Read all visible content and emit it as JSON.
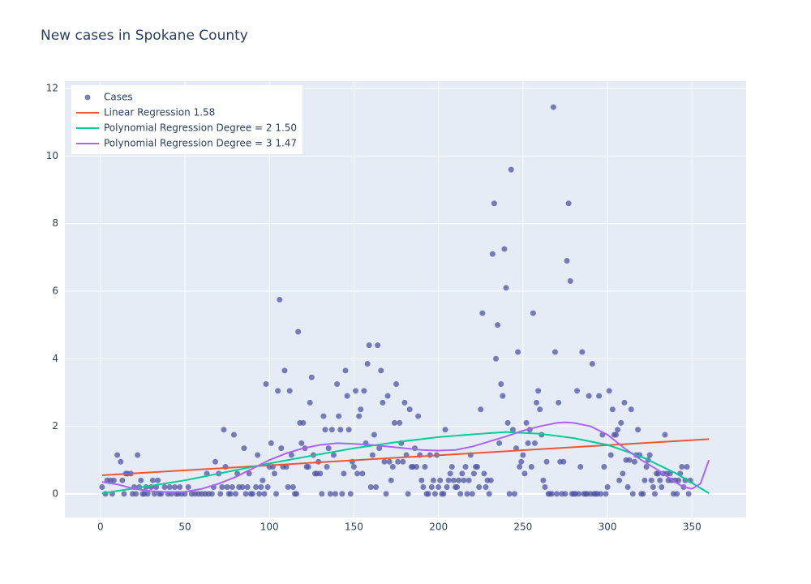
{
  "chart_data": {
    "type": "scatter",
    "title": "New cases in Spokane County",
    "xlim": [
      -21,
      382
    ],
    "ylim": [
      -0.7,
      12.22
    ],
    "xticks": [
      0,
      50,
      100,
      150,
      200,
      250,
      300,
      350
    ],
    "yticks": [
      0,
      2,
      4,
      6,
      8,
      10,
      12
    ],
    "grid": true,
    "legend": "top-left",
    "series": [
      {
        "name": "Cases",
        "color": "#5254a3",
        "mode": "markers",
        "opacity": 0.75,
        "x": [
          1,
          3,
          4,
          6,
          7,
          8,
          10,
          12,
          13,
          14,
          15,
          16,
          18,
          19,
          20,
          21,
          22,
          23,
          24,
          25,
          26,
          27,
          28,
          30,
          31,
          32,
          33,
          34,
          35,
          36,
          38,
          40,
          41,
          42,
          44,
          45,
          46,
          47,
          48,
          50,
          52,
          54,
          56,
          58,
          60,
          62,
          63,
          64,
          66,
          67,
          68,
          70,
          71,
          72,
          73,
          74,
          75,
          76,
          77,
          78,
          79,
          80,
          81,
          82,
          84,
          85,
          86,
          87,
          88,
          89,
          90,
          92,
          93,
          94,
          95,
          96,
          97,
          98,
          99,
          100,
          101,
          102,
          103,
          104,
          105,
          106,
          107,
          108,
          109,
          110,
          111,
          112,
          113,
          114,
          115,
          116,
          117,
          118,
          119,
          120,
          121,
          122,
          123,
          124,
          125,
          126,
          127,
          128,
          129,
          130,
          131,
          132,
          133,
          134,
          135,
          136,
          137,
          138,
          139,
          140,
          141,
          142,
          143,
          144,
          145,
          146,
          147,
          148,
          149,
          150,
          151,
          152,
          153,
          154,
          155,
          156,
          157,
          158,
          159,
          160,
          161,
          162,
          163,
          164,
          165,
          166,
          167,
          168,
          169,
          170,
          171,
          172,
          173,
          174,
          175,
          176,
          177,
          178,
          179,
          180,
          181,
          182,
          183,
          184,
          185,
          186,
          187,
          188,
          189,
          190,
          191,
          192,
          193,
          194,
          195,
          196,
          197,
          198,
          199,
          200,
          201,
          202,
          203,
          204,
          205,
          206,
          207,
          208,
          209,
          210,
          211,
          212,
          213,
          214,
          215,
          216,
          217,
          218,
          219,
          220,
          221,
          222,
          223,
          224,
          225,
          226,
          227,
          228,
          229,
          230,
          231,
          232,
          233,
          234,
          235,
          236,
          237,
          238,
          239,
          240,
          241,
          242,
          243,
          244,
          245,
          246,
          247,
          248,
          249,
          250,
          251,
          252,
          253,
          254,
          255,
          256,
          257,
          258,
          259,
          260,
          261,
          262,
          263,
          264,
          265,
          266,
          267,
          268,
          269,
          270,
          271,
          272,
          273,
          274,
          275,
          276,
          277,
          278,
          279,
          280,
          281,
          282,
          283,
          284,
          285,
          286,
          287,
          288,
          289,
          290,
          291,
          292,
          293,
          294,
          295,
          296,
          297,
          298,
          299,
          300,
          301,
          302,
          303,
          304,
          305,
          306,
          307,
          308,
          309,
          310,
          311,
          312,
          313,
          314,
          315,
          316,
          317,
          318,
          319,
          320,
          321,
          322,
          323,
          324,
          325,
          326,
          327,
          328,
          329,
          330,
          331,
          332,
          333,
          334,
          335,
          336,
          337,
          338,
          339,
          340,
          341,
          342,
          343,
          344,
          345,
          346,
          347,
          348,
          349
        ],
        "values": [
          0.2,
          0,
          0.4,
          0.4,
          0,
          0.4,
          1.15,
          0.95,
          0.4,
          0,
          0.6,
          0.6,
          0.6,
          0,
          0.2,
          0,
          1.15,
          0.2,
          0.4,
          0,
          0,
          0.2,
          0,
          0.2,
          0.4,
          0,
          0.2,
          0.4,
          0,
          0,
          0.2,
          0,
          0.2,
          0,
          0.2,
          0,
          0,
          0.2,
          0,
          0,
          0.2,
          0,
          0,
          0,
          0,
          0,
          0.6,
          0,
          0,
          0.2,
          0.95,
          0.6,
          0,
          0.2,
          1.9,
          0.8,
          0.2,
          0,
          0,
          0.2,
          1.75,
          0,
          0.6,
          0.2,
          0.2,
          1.35,
          0,
          0.2,
          0.6,
          0,
          0,
          0.2,
          1.15,
          0,
          0.2,
          0.4,
          0,
          3.25,
          0.2,
          0.8,
          1.5,
          0.8,
          0.6,
          0,
          3.05,
          5.75,
          1.35,
          0.8,
          3.65,
          0.8,
          0.2,
          3.05,
          1.15,
          0.2,
          0,
          0,
          4.8,
          2.1,
          1.5,
          2.1,
          1.35,
          0.8,
          0.8,
          2.7,
          3.45,
          1.15,
          0.6,
          0.6,
          0.95,
          0.6,
          0,
          2.3,
          1.9,
          0.8,
          1.35,
          0,
          1.9,
          1.15,
          0,
          3.25,
          2.3,
          1.9,
          0,
          0.6,
          3.65,
          2.9,
          1.9,
          0,
          0.95,
          0.8,
          3.05,
          0.6,
          2.3,
          2.5,
          0.6,
          3.05,
          1.5,
          3.85,
          4.4,
          0.2,
          1.15,
          1.75,
          0.2,
          4.4,
          1.35,
          3.65,
          2.7,
          0.95,
          0,
          2.9,
          0.95,
          0.4,
          0.8,
          2.1,
          3.25,
          0.95,
          2.1,
          1.5,
          0.95,
          2.7,
          1.15,
          0,
          2.5,
          0.8,
          0.8,
          1.35,
          0.8,
          2.3,
          1.15,
          0.4,
          0.2,
          0.8,
          0,
          0,
          1.15,
          0.2,
          0.4,
          0,
          1.15,
          0.2,
          0.4,
          0,
          0,
          1.9,
          0.2,
          0.4,
          0.6,
          0.8,
          0.4,
          0.2,
          0.2,
          0.4,
          0,
          0.6,
          0.4,
          0.8,
          0,
          0.4,
          1.15,
          0,
          0.6,
          0.8,
          0.8,
          0.2,
          2.5,
          5.35,
          0.6,
          0.2,
          0.4,
          0,
          0.4,
          7.1,
          8.6,
          4.0,
          5.0,
          1.5,
          3.25,
          2.9,
          7.25,
          6.1,
          2.1,
          0,
          9.6,
          1.9,
          0,
          1.35,
          4.2,
          0.8,
          0.95,
          1.15,
          0.6,
          2.1,
          1.5,
          1.9,
          0.8,
          5.35,
          1.5,
          2.7,
          3.05,
          2.5,
          1.75,
          0.4,
          0.2,
          0.95,
          0,
          0,
          0,
          11.45,
          4.2,
          0,
          2.7,
          0.95,
          0,
          0.95,
          0,
          6.9,
          8.6,
          6.3,
          0,
          0,
          0,
          3.05,
          0,
          0.8,
          4.2,
          0,
          0,
          0,
          2.9,
          0,
          3.85,
          0,
          0,
          0,
          2.9,
          0,
          1.75,
          0.8,
          0,
          0.2,
          3.05,
          1.15,
          2.5,
          1.75,
          1.75,
          1.9,
          0.4,
          2.1,
          0.6,
          2.7,
          1.0,
          0.2,
          1.0,
          2.5,
          0,
          0.95,
          1.15,
          1.9,
          1.15,
          0,
          0,
          0.4,
          0.8,
          1.0,
          1.15,
          0.4,
          0.2,
          0,
          0.6,
          0.6,
          0.4,
          0.2,
          0.6,
          1.75,
          0.6,
          0.4,
          0.6,
          0.4,
          0,
          0.4,
          0,
          0.4,
          0.6,
          0.8,
          0.2,
          0.4,
          0.8,
          0,
          0.4
        ]
      },
      {
        "name": "Linear Regression 1.58",
        "color": "#ef553b",
        "mode": "lines",
        "x": [
          1,
          360
        ],
        "values": [
          0.55,
          1.62
        ]
      },
      {
        "name": "Polynomial Regression Degree = 2 1.50",
        "color": "#00cc96",
        "mode": "lines",
        "x": [
          1,
          25,
          50,
          75,
          100,
          125,
          150,
          175,
          200,
          225,
          240,
          260,
          280,
          300,
          320,
          340,
          360
        ],
        "values": [
          0.02,
          0.2,
          0.4,
          0.65,
          0.9,
          1.13,
          1.35,
          1.53,
          1.68,
          1.78,
          1.83,
          1.78,
          1.65,
          1.45,
          1.1,
          0.62,
          0.02
        ]
      },
      {
        "name": "Polynomial Regression Degree = 3 1.47",
        "color": "#ab63fa",
        "mode": "lines",
        "x": [
          1,
          10,
          20,
          30,
          40,
          50,
          60,
          70,
          80,
          90,
          100,
          110,
          120,
          130,
          140,
          150,
          160,
          170,
          180,
          190,
          200,
          210,
          220,
          230,
          240,
          250,
          260,
          270,
          275,
          280,
          290,
          300,
          310,
          320,
          330,
          340,
          345,
          350,
          355,
          360
        ],
        "values": [
          0.35,
          0.28,
          0.15,
          0.08,
          0.05,
          0.06,
          0.15,
          0.3,
          0.5,
          0.75,
          1.0,
          1.2,
          1.35,
          1.45,
          1.5,
          1.48,
          1.45,
          1.4,
          1.35,
          1.3,
          1.28,
          1.3,
          1.4,
          1.55,
          1.7,
          1.87,
          2.0,
          2.1,
          2.12,
          2.1,
          2.0,
          1.75,
          1.35,
          1.0,
          0.7,
          0.35,
          0.2,
          0.15,
          0.3,
          1.0
        ]
      }
    ]
  }
}
